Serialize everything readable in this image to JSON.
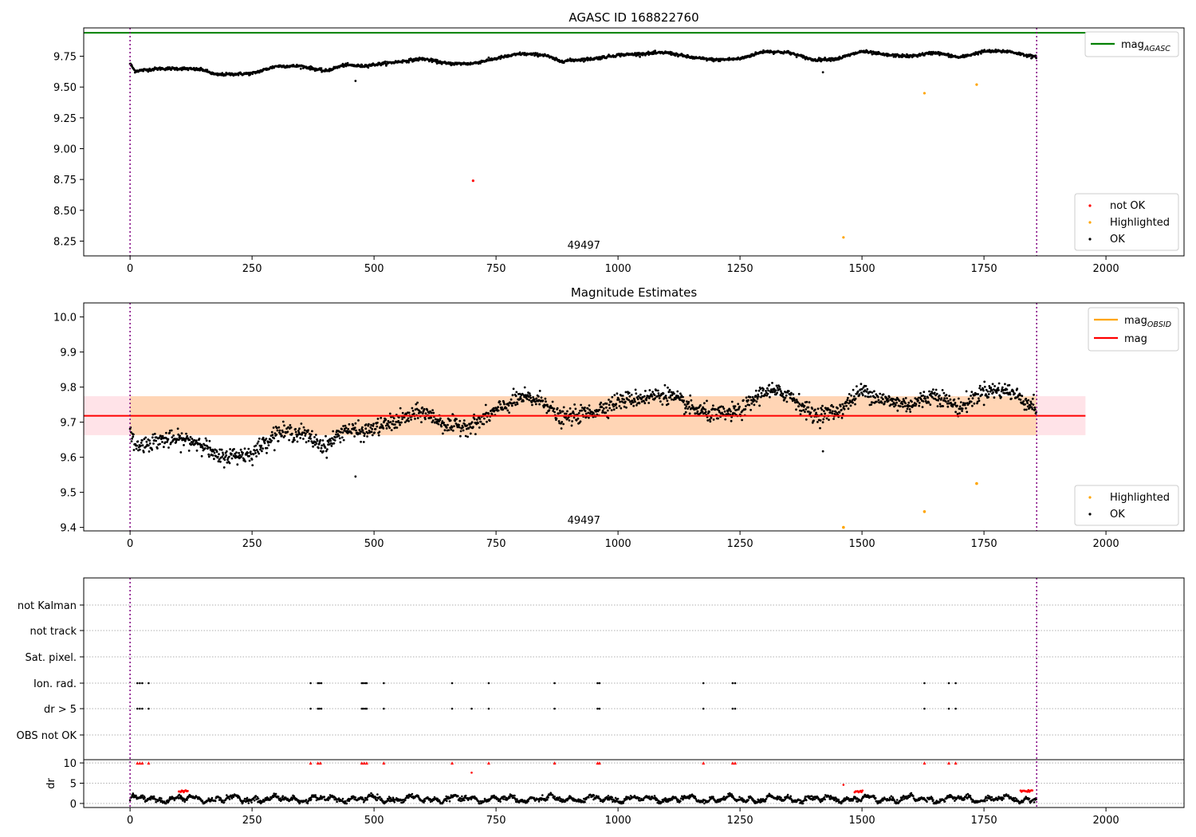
{
  "chart_data": [
    {
      "type": "scatter",
      "title": "AGASC ID 168822760",
      "xlim": [
        -95,
        2160
      ],
      "ylim": [
        8.13,
        9.98
      ],
      "xticks": [
        "0",
        "250",
        "500",
        "750",
        "1000",
        "1250",
        "1500",
        "1750",
        "2000"
      ],
      "yticks": [
        "8.25",
        "8.50",
        "8.75",
        "9.00",
        "9.25",
        "9.50",
        "9.75"
      ],
      "vlines": [
        0,
        1858
      ],
      "obsid_label": {
        "text": "49497",
        "x": 930
      },
      "mag_agasc": {
        "y": 9.94,
        "x_range": [
          -95,
          1958
        ],
        "color": "#008000"
      },
      "line_legend": [
        {
          "label": "mag",
          "sub": "AGASC",
          "color": "#008000"
        }
      ],
      "legend": [
        {
          "label": "not OK",
          "color": "#ff0000"
        },
        {
          "label": "Highlighted",
          "color": "#ffa500"
        },
        {
          "label": "OK",
          "color": "#000000"
        }
      ],
      "ok_series": {
        "n": 1858,
        "x_start": 0,
        "x_step": 1,
        "knots_x": [
          0,
          10,
          60,
          110,
          150,
          175,
          250,
          300,
          350,
          400,
          440,
          475,
          560,
          600,
          650,
          700,
          760,
          800,
          850,
          880,
          950,
          1000,
          1100,
          1150,
          1200,
          1250,
          1300,
          1350,
          1400,
          1450,
          1500,
          1550,
          1600,
          1650,
          1700,
          1750,
          1800,
          1858
        ],
        "knots_y": [
          9.69,
          9.63,
          9.65,
          9.65,
          9.64,
          9.6,
          9.61,
          9.67,
          9.67,
          9.63,
          9.68,
          9.67,
          9.71,
          9.73,
          9.69,
          9.69,
          9.74,
          9.77,
          9.76,
          9.71,
          9.73,
          9.76,
          9.78,
          9.74,
          9.72,
          9.73,
          9.79,
          9.78,
          9.72,
          9.73,
          9.79,
          9.76,
          9.75,
          9.78,
          9.74,
          9.79,
          9.79,
          9.74
        ],
        "noise": 0.006
      },
      "outliers": [
        {
          "x": 462,
          "y": 9.55,
          "status": "OK"
        },
        {
          "x": 1420,
          "y": 9.62,
          "status": "OK"
        }
      ],
      "not_ok": [
        {
          "x": 703,
          "y": 8.74
        }
      ],
      "highlighted": [
        {
          "x": 1462,
          "y": 8.28
        },
        {
          "x": 1628,
          "y": 9.45
        },
        {
          "x": 1735,
          "y": 9.52
        }
      ]
    },
    {
      "type": "scatter",
      "title": "Magnitude Estimates",
      "xlim": [
        -95,
        2160
      ],
      "ylim": [
        9.39,
        10.04
      ],
      "xticks": [
        "0",
        "250",
        "500",
        "750",
        "1000",
        "1250",
        "1500",
        "1750",
        "2000"
      ],
      "yticks": [
        "9.4",
        "9.5",
        "9.6",
        "9.7",
        "9.8",
        "9.9",
        "10.0"
      ],
      "vlines": [
        0,
        1858
      ],
      "obsid_label": {
        "text": "49497",
        "x": 930
      },
      "mag_line": {
        "y": 9.718,
        "x_range": [
          -95,
          1958
        ],
        "color": "#ff0000"
      },
      "mag_band": {
        "y_range": [
          9.663,
          9.774
        ],
        "x_range": [
          -95,
          1958
        ],
        "color": "#ffc0cb"
      },
      "obsid_band": {
        "y_range": [
          9.663,
          9.774
        ],
        "x_range": [
          0,
          1858
        ],
        "color": "#ffa500"
      },
      "line_legend": [
        {
          "label": "mag",
          "sub": "OBSID",
          "color": "#ffa500"
        },
        {
          "label": "mag",
          "sub": "",
          "color": "#ff0000"
        }
      ],
      "legend": [
        {
          "label": "Highlighted",
          "color": "#ffa500"
        },
        {
          "label": "OK",
          "color": "#000000"
        }
      ],
      "ok_series": {
        "n": 1858,
        "x_start": 0,
        "x_step": 1,
        "knots_x": [
          0,
          10,
          60,
          110,
          150,
          175,
          250,
          300,
          350,
          400,
          440,
          475,
          560,
          600,
          650,
          700,
          760,
          800,
          850,
          880,
          950,
          1000,
          1100,
          1150,
          1200,
          1250,
          1300,
          1350,
          1400,
          1450,
          1500,
          1550,
          1600,
          1650,
          1700,
          1750,
          1800,
          1858
        ],
        "knots_y": [
          9.69,
          9.63,
          9.65,
          9.65,
          9.64,
          9.6,
          9.61,
          9.67,
          9.67,
          9.63,
          9.68,
          9.67,
          9.71,
          9.73,
          9.69,
          9.69,
          9.74,
          9.77,
          9.76,
          9.71,
          9.73,
          9.76,
          9.78,
          9.74,
          9.72,
          9.73,
          9.79,
          9.78,
          9.72,
          9.73,
          9.79,
          9.76,
          9.75,
          9.78,
          9.74,
          9.79,
          9.79,
          9.74
        ],
        "noise": 0.012
      },
      "outliers": [
        {
          "x": 462,
          "y": 9.545,
          "status": "OK"
        },
        {
          "x": 1420,
          "y": 9.617,
          "status": "OK"
        }
      ],
      "highlighted": [
        {
          "x": 1462,
          "y": 9.4
        },
        {
          "x": 1628,
          "y": 9.445
        },
        {
          "x": 1735,
          "y": 9.525
        }
      ]
    },
    {
      "type": "scatter",
      "title": "",
      "xlim": [
        -95,
        2160
      ],
      "flag_rows": [
        "not Kalman",
        "not track",
        "Sat. pixel.",
        "Ion. rad.",
        "dr > 5",
        "OBS not OK"
      ],
      "flag_points": {
        "Ion. rad.": [
          15,
          20,
          25,
          38,
          370,
          385,
          388,
          392,
          475,
          478,
          482,
          485,
          520,
          660,
          735,
          870,
          958,
          962,
          1175,
          1235,
          1240,
          1628,
          1678,
          1692
        ],
        "dr > 5": [
          15,
          20,
          25,
          38,
          370,
          385,
          388,
          392,
          475,
          478,
          482,
          485,
          520,
          660,
          700,
          735,
          870,
          958,
          962,
          1175,
          1235,
          1240,
          1628,
          1678,
          1692
        ]
      },
      "dr_panel": {
        "ylabel": "dr",
        "yticks": [
          "0",
          "5",
          "10"
        ],
        "ylim": [
          -1,
          10.8
        ],
        "clip_value": 10,
        "high_points": [
          {
            "x": 15,
            "y": 10
          },
          {
            "x": 20,
            "y": 10
          },
          {
            "x": 25,
            "y": 10
          },
          {
            "x": 38,
            "y": 10
          },
          {
            "x": 370,
            "y": 10
          },
          {
            "x": 385,
            "y": 10
          },
          {
            "x": 390,
            "y": 10
          },
          {
            "x": 475,
            "y": 10
          },
          {
            "x": 480,
            "y": 10
          },
          {
            "x": 485,
            "y": 10
          },
          {
            "x": 520,
            "y": 10
          },
          {
            "x": 660,
            "y": 10
          },
          {
            "x": 700,
            "y": 7.6
          },
          {
            "x": 735,
            "y": 10
          },
          {
            "x": 870,
            "y": 10
          },
          {
            "x": 958,
            "y": 10
          },
          {
            "x": 962,
            "y": 10
          },
          {
            "x": 1175,
            "y": 10
          },
          {
            "x": 1235,
            "y": 10
          },
          {
            "x": 1240,
            "y": 10
          },
          {
            "x": 1462,
            "y": 4.6
          },
          {
            "x": 1628,
            "y": 10
          },
          {
            "x": 1678,
            "y": 10
          },
          {
            "x": 1692,
            "y": 10
          }
        ],
        "red_clusters": [
          {
            "x_range": [
              100,
              118
            ],
            "y": 3.0
          },
          {
            "x_range": [
              1485,
              1502
            ],
            "y": 3.0
          },
          {
            "x_range": [
              1825,
              1850
            ],
            "y": 3.1
          }
        ],
        "black_series": {
          "base": 1.1,
          "amp": 0.8,
          "n": 1858
        }
      }
    }
  ]
}
